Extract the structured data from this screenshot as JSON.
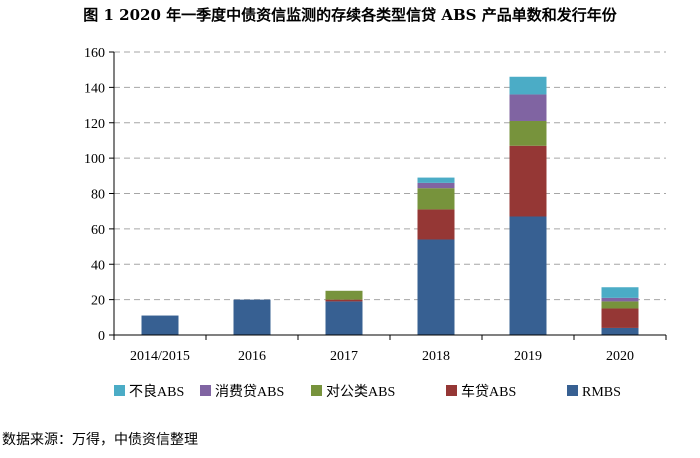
{
  "title": "图 1 2020 年一季度中债资信监测的存续各类型信贷 ABS 产品单数和发行年份",
  "source": "数据来源：万得，中债资信整理",
  "chart_data": {
    "type": "bar",
    "stacked": true,
    "categories": [
      "2014/2015",
      "2016",
      "2017",
      "2018",
      "2019",
      "2020"
    ],
    "series": [
      {
        "name": "RMBS",
        "color": "#376092",
        "values": [
          11,
          20,
          19,
          54,
          67,
          4
        ]
      },
      {
        "name": "车贷ABS",
        "color": "#953735",
        "values": [
          0,
          0,
          1,
          17,
          40,
          11
        ]
      },
      {
        "name": "对公类ABS",
        "color": "#77933C",
        "values": [
          0,
          0,
          5,
          12,
          14,
          4
        ]
      },
      {
        "name": "消费贷ABS",
        "color": "#8064A2",
        "values": [
          0,
          0,
          0,
          3,
          15,
          2
        ]
      },
      {
        "name": "不良ABS",
        "color": "#4BACC6",
        "values": [
          0,
          0,
          0,
          3,
          10,
          6
        ]
      }
    ],
    "legend_order": [
      "不良ABS",
      "消费贷ABS",
      "对公类ABS",
      "车贷ABS",
      "RMBS"
    ],
    "ylim": [
      0,
      160
    ],
    "yticks": [
      0,
      20,
      40,
      60,
      80,
      100,
      120,
      140,
      160
    ],
    "grid": true,
    "legend_position": "bottom"
  }
}
